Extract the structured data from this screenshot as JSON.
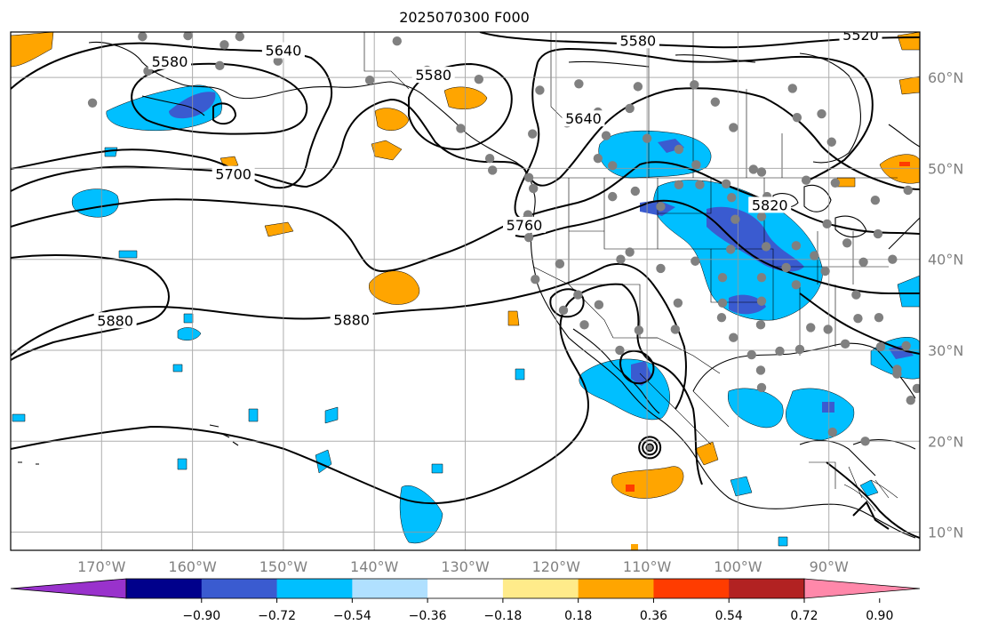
{
  "title": "2025070300 F000",
  "map": {
    "lon_range": [
      -180,
      -80
    ],
    "lat_range": [
      8,
      65
    ],
    "grid": true,
    "lon_ticks": [
      {
        "value": -170,
        "label": "170°W"
      },
      {
        "value": -160,
        "label": "160°W"
      },
      {
        "value": -150,
        "label": "150°W"
      },
      {
        "value": -140,
        "label": "140°W"
      },
      {
        "value": -130,
        "label": "130°W"
      },
      {
        "value": -120,
        "label": "120°W"
      },
      {
        "value": -110,
        "label": "110°W"
      },
      {
        "value": -100,
        "label": "100°W"
      },
      {
        "value": -90,
        "label": "90°W"
      }
    ],
    "lat_ticks": [
      {
        "value": 60,
        "label": "60°N"
      },
      {
        "value": 50,
        "label": "50°N"
      },
      {
        "value": 40,
        "label": "40°N"
      },
      {
        "value": 30,
        "label": "30°N"
      },
      {
        "value": 20,
        "label": "20°N"
      },
      {
        "value": 10,
        "label": "10°N"
      }
    ],
    "contour_labels": [
      {
        "text": "5640",
        "lon": -150,
        "lat": 62.7
      },
      {
        "text": "5580",
        "lon": -162.5,
        "lat": 61.5
      },
      {
        "text": "5580",
        "lon": -133.5,
        "lat": 60.0
      },
      {
        "text": "5580",
        "lon": -111.0,
        "lat": 63.8
      },
      {
        "text": "5520",
        "lon": -86.5,
        "lat": 64.4
      },
      {
        "text": "5640",
        "lon": -117.0,
        "lat": 55.2
      },
      {
        "text": "5700",
        "lon": -155.5,
        "lat": 49.1
      },
      {
        "text": "5760",
        "lon": -123.5,
        "lat": 43.5
      },
      {
        "text": "5820",
        "lon": -96.5,
        "lat": 45.7
      },
      {
        "text": "5880",
        "lon": -168.5,
        "lat": 33.0
      },
      {
        "text": "5880",
        "lon": -142.5,
        "lat": 33.1
      }
    ],
    "stations": [
      [
        -165.5,
        64.5
      ],
      [
        -160.5,
        64.6
      ],
      [
        -156.5,
        63.6
      ],
      [
        -154.8,
        64.5
      ],
      [
        -150.6,
        61.8
      ],
      [
        -157.0,
        61.3
      ],
      [
        -164.9,
        60.7
      ],
      [
        -171.0,
        57.2
      ],
      [
        -137.5,
        64.0
      ],
      [
        -140.5,
        59.7
      ],
      [
        -134.2,
        60.8
      ],
      [
        -128.5,
        59.8
      ],
      [
        -121.8,
        58.6
      ],
      [
        -122.6,
        53.8
      ],
      [
        -130.5,
        54.4
      ],
      [
        -127.3,
        51.1
      ],
      [
        -127.0,
        49.8
      ],
      [
        -123.0,
        49.0
      ],
      [
        -122.5,
        47.8
      ],
      [
        -123.1,
        44.9
      ],
      [
        -123.0,
        42.4
      ],
      [
        -119.6,
        39.5
      ],
      [
        -122.3,
        37.8
      ],
      [
        -117.6,
        36.1
      ],
      [
        -115.3,
        35.0
      ],
      [
        -119.2,
        34.4
      ],
      [
        -116.9,
        32.8
      ],
      [
        -113.0,
        30.0
      ],
      [
        -110.9,
        32.2
      ],
      [
        -106.9,
        32.3
      ],
      [
        -106.6,
        35.2
      ],
      [
        -104.7,
        39.8
      ],
      [
        -108.5,
        39.0
      ],
      [
        -111.9,
        40.8
      ],
      [
        -112.9,
        40.0
      ],
      [
        -113.8,
        46.9
      ],
      [
        -111.3,
        47.5
      ],
      [
        -108.5,
        45.8
      ],
      [
        -106.5,
        48.2
      ],
      [
        -104.2,
        48.2
      ],
      [
        -101.3,
        48.3
      ],
      [
        -96.8,
        46.9
      ],
      [
        -100.7,
        46.8
      ],
      [
        -97.4,
        44.7
      ],
      [
        -100.3,
        44.4
      ],
      [
        -96.9,
        41.4
      ],
      [
        -100.8,
        41.1
      ],
      [
        -97.4,
        38.0
      ],
      [
        -101.7,
        38.0
      ],
      [
        -97.4,
        35.4
      ],
      [
        -101.7,
        35.2
      ],
      [
        -97.5,
        32.8
      ],
      [
        -101.8,
        33.6
      ],
      [
        -100.5,
        31.4
      ],
      [
        -98.5,
        29.5
      ],
      [
        -97.5,
        27.8
      ],
      [
        -97.4,
        25.9
      ],
      [
        -93.2,
        30.1
      ],
      [
        -95.4,
        29.9
      ],
      [
        -92.0,
        32.5
      ],
      [
        -90.1,
        32.3
      ],
      [
        -93.6,
        37.2
      ],
      [
        -90.4,
        38.7
      ],
      [
        -94.7,
        39.1
      ],
      [
        -93.6,
        41.5
      ],
      [
        -91.6,
        40.4
      ],
      [
        -90.2,
        43.9
      ],
      [
        -88.0,
        41.8
      ],
      [
        -86.2,
        39.7
      ],
      [
        -87.0,
        36.1
      ],
      [
        -86.8,
        33.5
      ],
      [
        -88.2,
        30.7
      ],
      [
        -84.6,
        42.8
      ],
      [
        -83.0,
        40.0
      ],
      [
        -84.5,
        33.6
      ],
      [
        -82.5,
        27.9
      ],
      [
        -84.3,
        30.4
      ],
      [
        -81.5,
        30.5
      ],
      [
        -82.5,
        27.4
      ],
      [
        -80.3,
        25.8
      ],
      [
        -81.0,
        24.5
      ],
      [
        -86.0,
        20.0
      ],
      [
        -89.6,
        21.0
      ],
      [
        -104.8,
        59.2
      ],
      [
        -102.5,
        57.3
      ],
      [
        -94.0,
        58.8
      ],
      [
        -106.5,
        52.1
      ],
      [
        -110.0,
        53.3
      ],
      [
        -114.5,
        53.6
      ],
      [
        -111.0,
        59.0
      ],
      [
        -100.5,
        54.5
      ],
      [
        -98.3,
        49.9
      ],
      [
        -89.7,
        52.9
      ],
      [
        -90.8,
        56.0
      ],
      [
        -93.5,
        55.6
      ],
      [
        -111.9,
        56.6
      ],
      [
        -115.4,
        56.2
      ],
      [
        -115.4,
        51.1
      ],
      [
        -113.8,
        50.3
      ],
      [
        -118.8,
        55.0
      ],
      [
        -117.5,
        59.3
      ],
      [
        -97.4,
        49.6
      ],
      [
        -104.6,
        50.4
      ],
      [
        -84.9,
        46.5
      ],
      [
        -81.3,
        47.6
      ],
      [
        -92.5,
        48.7
      ],
      [
        -89.3,
        48.4
      ]
    ],
    "hurricane_center": {
      "lon": -109.7,
      "lat": 19.3
    }
  },
  "colorbar": {
    "ticks": [
      "−0.90",
      "−0.72",
      "−0.54",
      "−0.36",
      "−0.18",
      "0.18",
      "0.36",
      "0.54",
      "0.72",
      "0.90"
    ],
    "colors": [
      "#9932cc",
      "#00008b",
      "#3a5bd0",
      "#00bfff",
      "#b0e0ff",
      "#ffffff",
      "#ffeb8a",
      "#ffa500",
      "#ff3c00",
      "#b22222",
      "#ff88aa"
    ]
  }
}
